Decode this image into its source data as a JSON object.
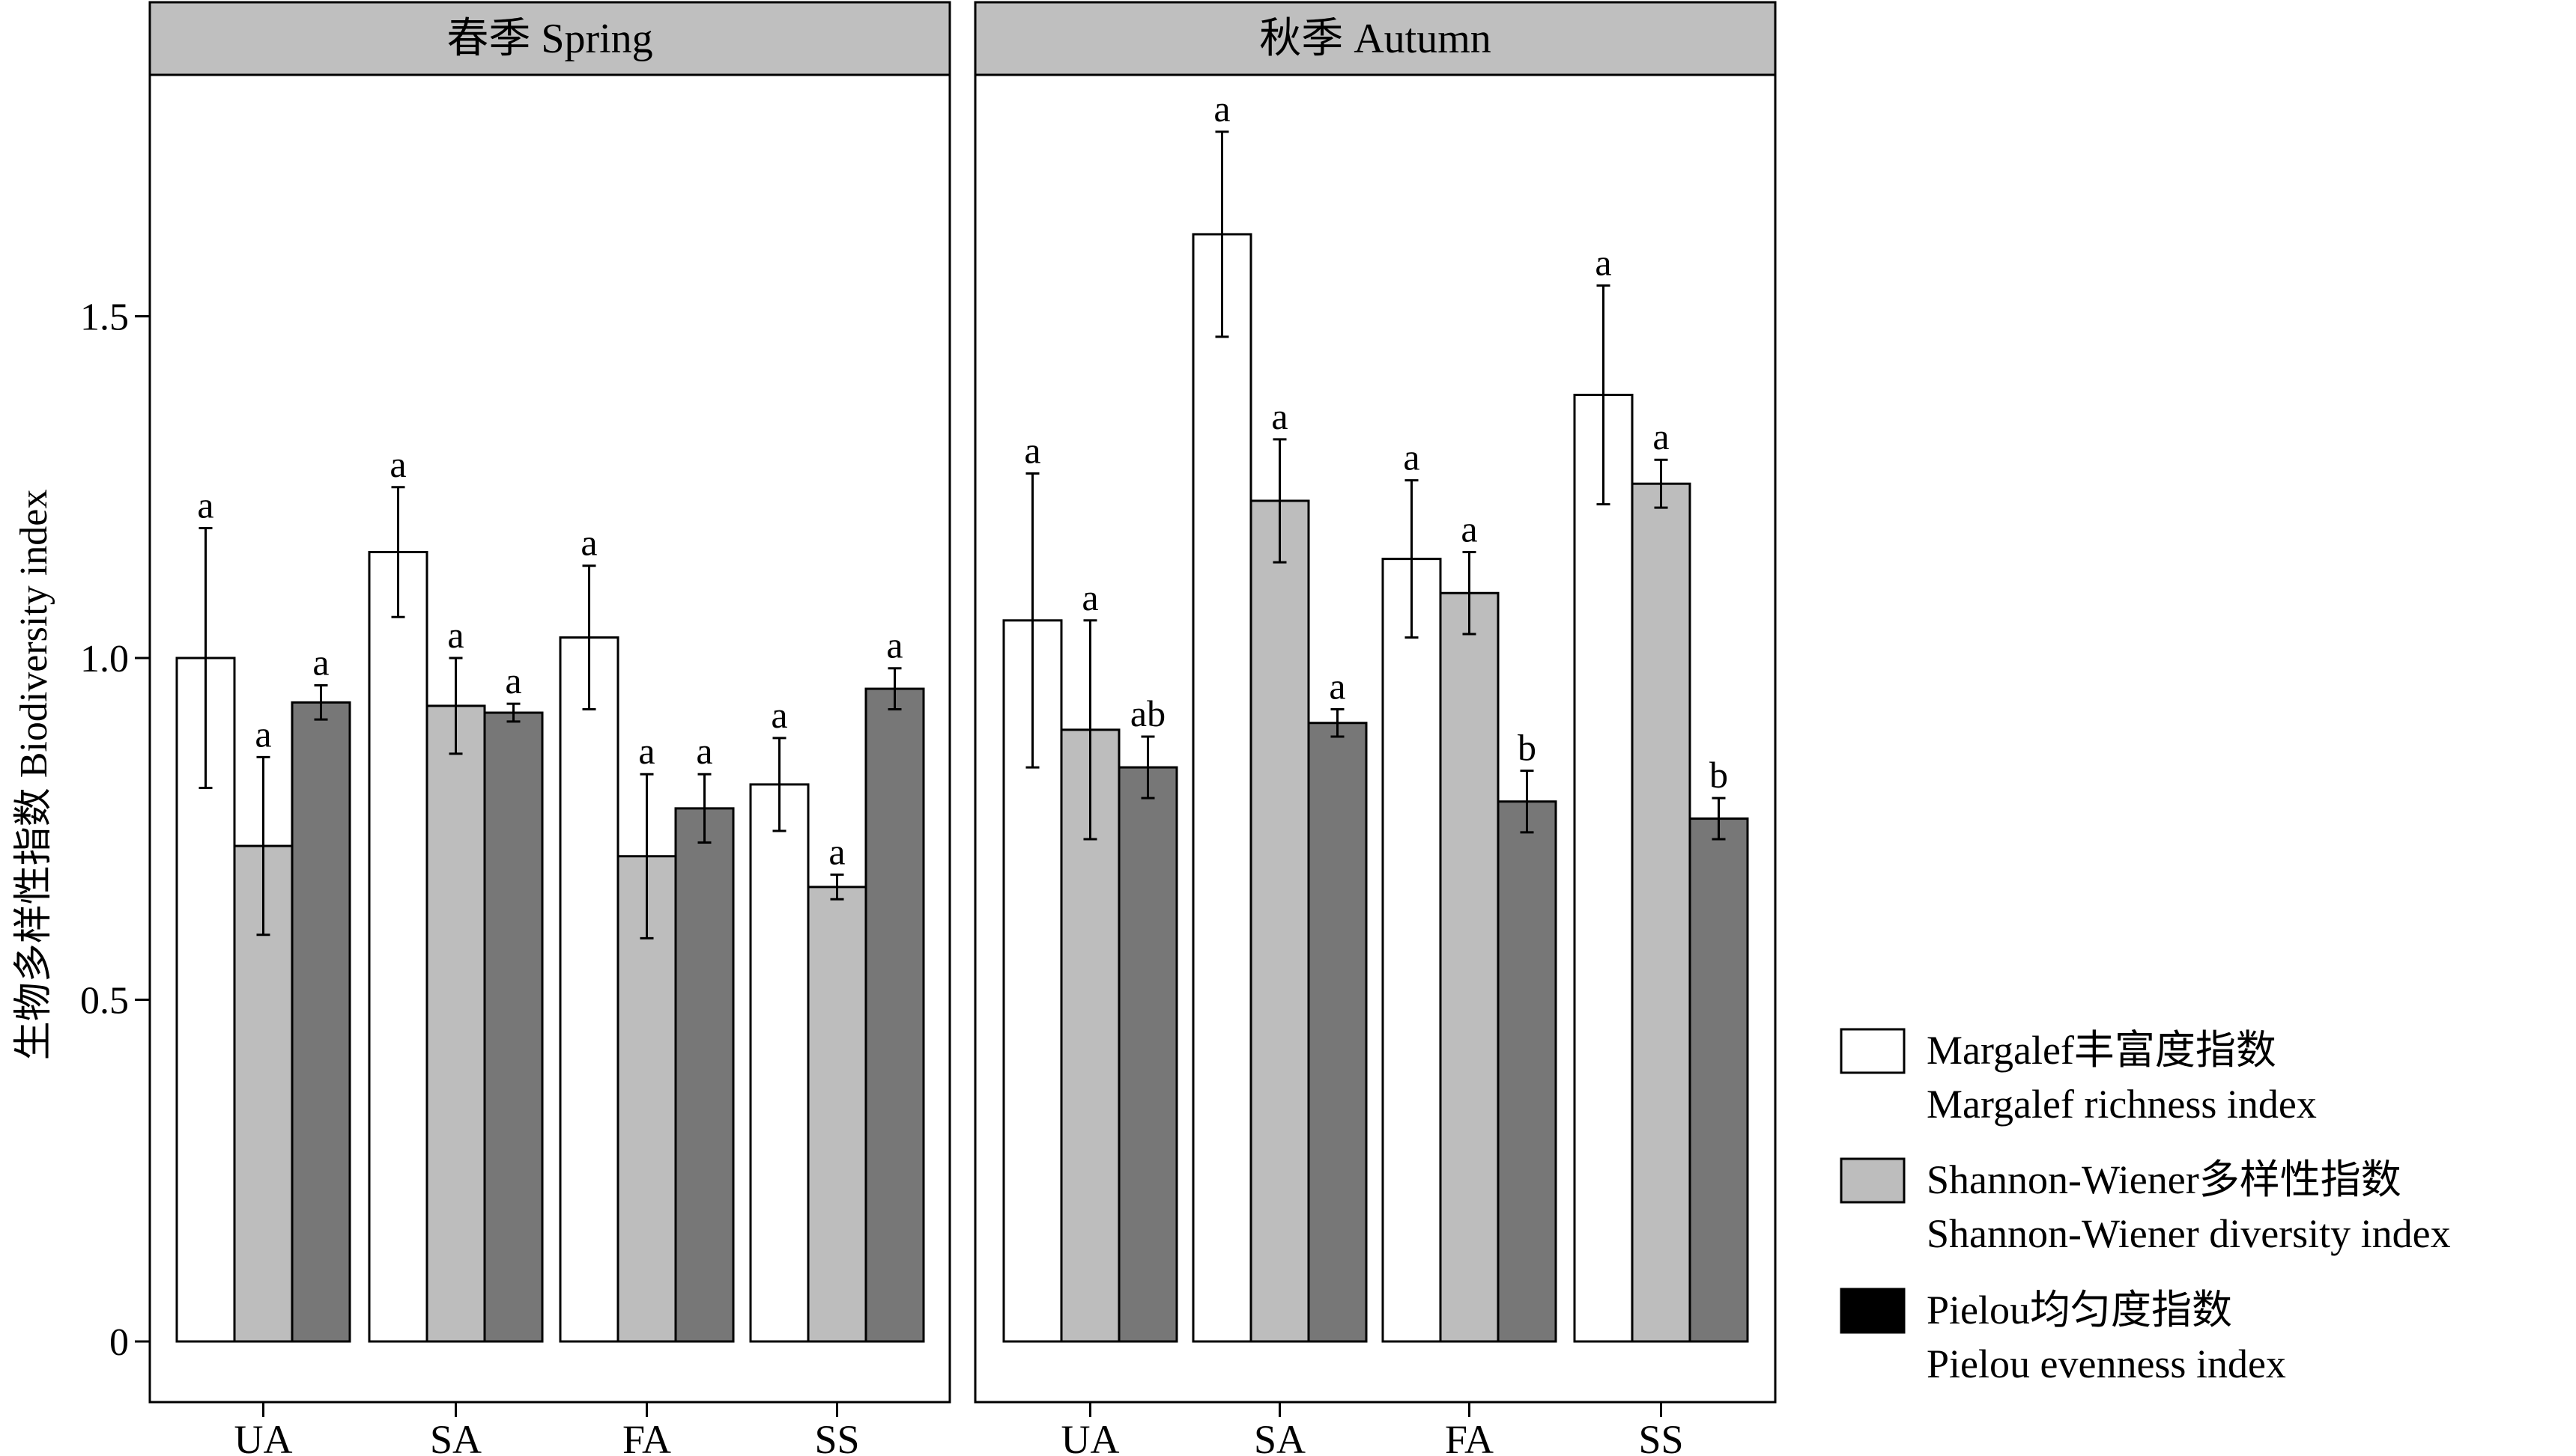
{
  "chart_data": {
    "type": "bar",
    "ylabel": "生物多样性指数 Biodiversity index",
    "ylim": [
      0,
      1.85
    ],
    "yticks": [
      {
        "value": 0,
        "label": "0"
      },
      {
        "value": 0.5,
        "label": "0.5"
      },
      {
        "value": 1.0,
        "label": "1.0"
      },
      {
        "value": 1.5,
        "label": "1.5"
      }
    ],
    "categories": [
      "UA",
      "SA",
      "FA",
      "SS"
    ],
    "legend_position": "right",
    "series": [
      {
        "name": "Margalef丰富度指数",
        "name_en": "Margalef richness index",
        "color": "#ffffff"
      },
      {
        "name": "Shannon-Wiener多样性指数",
        "name_en": "Shannon-Wiener diversity index",
        "color": "#bdbdbd"
      },
      {
        "name": "Pielou均匀度指数",
        "name_en": "Pielou evenness index",
        "color": "#777777"
      }
    ],
    "legend_swatch_colors": [
      "#ffffff",
      "#bdbdbd",
      "#000000"
    ],
    "panels": [
      {
        "title": "春季 Spring",
        "values": [
          [
            1.0,
            0.725,
            0.935
          ],
          [
            1.155,
            0.93,
            0.92
          ],
          [
            1.03,
            0.71,
            0.78
          ],
          [
            0.815,
            0.665,
            0.955
          ]
        ],
        "errors": [
          [
            0.19,
            0.13,
            0.025
          ],
          [
            0.095,
            0.07,
            0.013
          ],
          [
            0.105,
            0.12,
            0.05
          ],
          [
            0.068,
            0.018,
            0.03
          ]
        ],
        "letters": [
          [
            "a",
            "a",
            "a"
          ],
          [
            "a",
            "a",
            "a"
          ],
          [
            "a",
            "a",
            "a"
          ],
          [
            "a",
            "a",
            "a"
          ]
        ]
      },
      {
        "title": "秋季 Autumn",
        "values": [
          [
            1.055,
            0.895,
            0.84
          ],
          [
            1.62,
            1.23,
            0.905
          ],
          [
            1.145,
            1.095,
            0.79
          ],
          [
            1.385,
            1.255,
            0.765
          ]
        ],
        "errors": [
          [
            0.215,
            0.16,
            0.045
          ],
          [
            0.15,
            0.09,
            0.02
          ],
          [
            0.115,
            0.06,
            0.045
          ],
          [
            0.16,
            0.035,
            0.03
          ]
        ],
        "letters": [
          [
            "a",
            "a",
            "ab"
          ],
          [
            "a",
            "a",
            "a"
          ],
          [
            "a",
            "a",
            "b"
          ],
          [
            "a",
            "a",
            "b"
          ]
        ]
      }
    ]
  }
}
